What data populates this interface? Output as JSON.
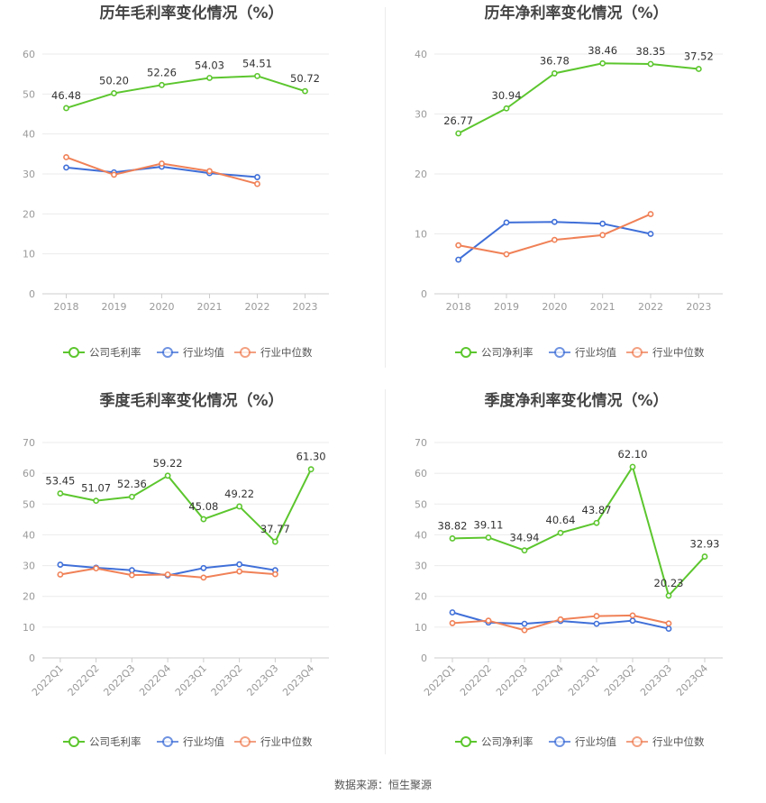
{
  "source_label": "数据来源：恒生聚源",
  "chart_data": [
    {
      "type": "line",
      "title": "历年毛利率变化情况（%）",
      "categories": [
        "2018",
        "2019",
        "2020",
        "2021",
        "2022",
        "2023"
      ],
      "ylim": [
        0,
        60
      ],
      "yticks": [
        0,
        10,
        20,
        30,
        40,
        50,
        60
      ],
      "series": [
        {
          "name": "公司毛利率",
          "color": "#5cc62e",
          "labels": true,
          "values": [
            46.48,
            50.2,
            52.26,
            54.03,
            54.51,
            50.72
          ]
        },
        {
          "name": "行业均值",
          "color": "#3f6fd8",
          "labels": false,
          "values": [
            31.6,
            30.4,
            31.8,
            30.2,
            29.2,
            null
          ]
        },
        {
          "name": "行业中位数",
          "color": "#f08157",
          "labels": false,
          "values": [
            34.2,
            29.8,
            32.6,
            30.7,
            27.5,
            null
          ]
        }
      ],
      "data_labels": [
        "46.48",
        "50.20",
        "52.26",
        "54.03",
        "54.51",
        "50.72"
      ],
      "rotate_x": false
    },
    {
      "type": "line",
      "title": "历年净利率变化情况（%）",
      "categories": [
        "2018",
        "2019",
        "2020",
        "2021",
        "2022",
        "2023"
      ],
      "ylim": [
        0,
        40
      ],
      "yticks": [
        0,
        10,
        20,
        30,
        40
      ],
      "series": [
        {
          "name": "公司净利率",
          "color": "#5cc62e",
          "labels": true,
          "values": [
            26.77,
            30.94,
            36.78,
            38.46,
            38.35,
            37.52
          ]
        },
        {
          "name": "行业均值",
          "color": "#3f6fd8",
          "labels": false,
          "values": [
            5.7,
            11.9,
            12.0,
            11.7,
            10.0,
            null
          ]
        },
        {
          "name": "行业中位数",
          "color": "#f08157",
          "labels": false,
          "values": [
            8.1,
            6.6,
            9.0,
            9.8,
            13.3,
            null
          ]
        }
      ],
      "data_labels": [
        "26.77",
        "30.94",
        "36.78",
        "38.46",
        "38.35",
        "37.52"
      ],
      "rotate_x": false
    },
    {
      "type": "line",
      "title": "季度毛利率变化情况（%）",
      "categories": [
        "2022Q1",
        "2022Q2",
        "2022Q3",
        "2022Q4",
        "2023Q1",
        "2023Q2",
        "2023Q3",
        "2023Q4"
      ],
      "ylim": [
        0,
        70
      ],
      "yticks": [
        0,
        10,
        20,
        30,
        40,
        50,
        60,
        70
      ],
      "series": [
        {
          "name": "公司毛利率",
          "color": "#5cc62e",
          "labels": true,
          "values": [
            53.45,
            51.07,
            52.36,
            59.22,
            45.08,
            49.22,
            37.77,
            61.3
          ]
        },
        {
          "name": "行业均值",
          "color": "#3f6fd8",
          "labels": false,
          "values": [
            30.3,
            29.3,
            28.5,
            26.8,
            29.2,
            30.4,
            28.5,
            null
          ]
        },
        {
          "name": "行业中位数",
          "color": "#f08157",
          "labels": false,
          "values": [
            27.1,
            29.1,
            26.9,
            27.1,
            26.1,
            28.1,
            27.2,
            null
          ]
        }
      ],
      "data_labels": [
        "53.45",
        "51.07",
        "52.36",
        "59.22",
        "45.08",
        "49.22",
        "37.77",
        "61.30"
      ],
      "rotate_x": true
    },
    {
      "type": "line",
      "title": "季度净利率变化情况（%）",
      "categories": [
        "2022Q1",
        "2022Q2",
        "2022Q3",
        "2022Q4",
        "2023Q1",
        "2023Q2",
        "2023Q3",
        "2023Q4"
      ],
      "ylim": [
        0,
        70
      ],
      "yticks": [
        0,
        10,
        20,
        30,
        40,
        50,
        60,
        70
      ],
      "series": [
        {
          "name": "公司净利率",
          "color": "#5cc62e",
          "labels": true,
          "values": [
            38.82,
            39.11,
            34.94,
            40.64,
            43.87,
            62.1,
            20.23,
            32.93
          ]
        },
        {
          "name": "行业均值",
          "color": "#3f6fd8",
          "labels": false,
          "values": [
            14.8,
            11.5,
            11.1,
            12.0,
            11.1,
            12.1,
            9.5,
            null
          ]
        },
        {
          "name": "行业中位数",
          "color": "#f08157",
          "labels": false,
          "values": [
            11.3,
            12.1,
            9.0,
            12.5,
            13.6,
            13.8,
            11.2,
            null
          ]
        }
      ],
      "data_labels": [
        "38.82",
        "39.11",
        "34.94",
        "40.64",
        "43.87",
        "62.10",
        "20.23",
        "32.93"
      ],
      "rotate_x": true
    }
  ]
}
